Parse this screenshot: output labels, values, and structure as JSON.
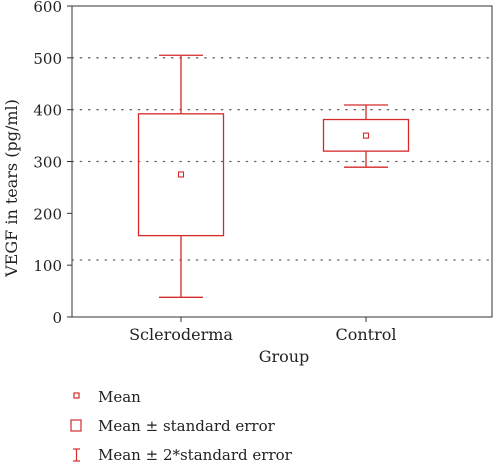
{
  "chart_data": {
    "type": "box",
    "ylabel": "VEGF in tears (pg/ml)",
    "xlabel": "Group",
    "ylim": [
      0,
      600
    ],
    "yticks": [
      0,
      100,
      200,
      300,
      400,
      500,
      600
    ],
    "gridlines_dotted": [
      110,
      300,
      400,
      500
    ],
    "categories": [
      "Scleroderma",
      "Control"
    ],
    "groups": [
      {
        "category": "Scleroderma",
        "mean": 275,
        "se_low": 157,
        "se_high": 392,
        "two_se_low": 38,
        "two_se_high": 505
      },
      {
        "category": "Control",
        "mean": 350,
        "se_low": 320,
        "se_high": 381,
        "two_se_low": 289,
        "two_se_high": 409
      }
    ],
    "color": "#d42a2a"
  },
  "legend": [
    {
      "icon": "mean-marker-icon",
      "label": "Mean"
    },
    {
      "icon": "standard-error-box-icon",
      "label": "Mean ± standard error"
    },
    {
      "icon": "error-bar-icon",
      "label": "Mean ± 2*standard error"
    }
  ]
}
